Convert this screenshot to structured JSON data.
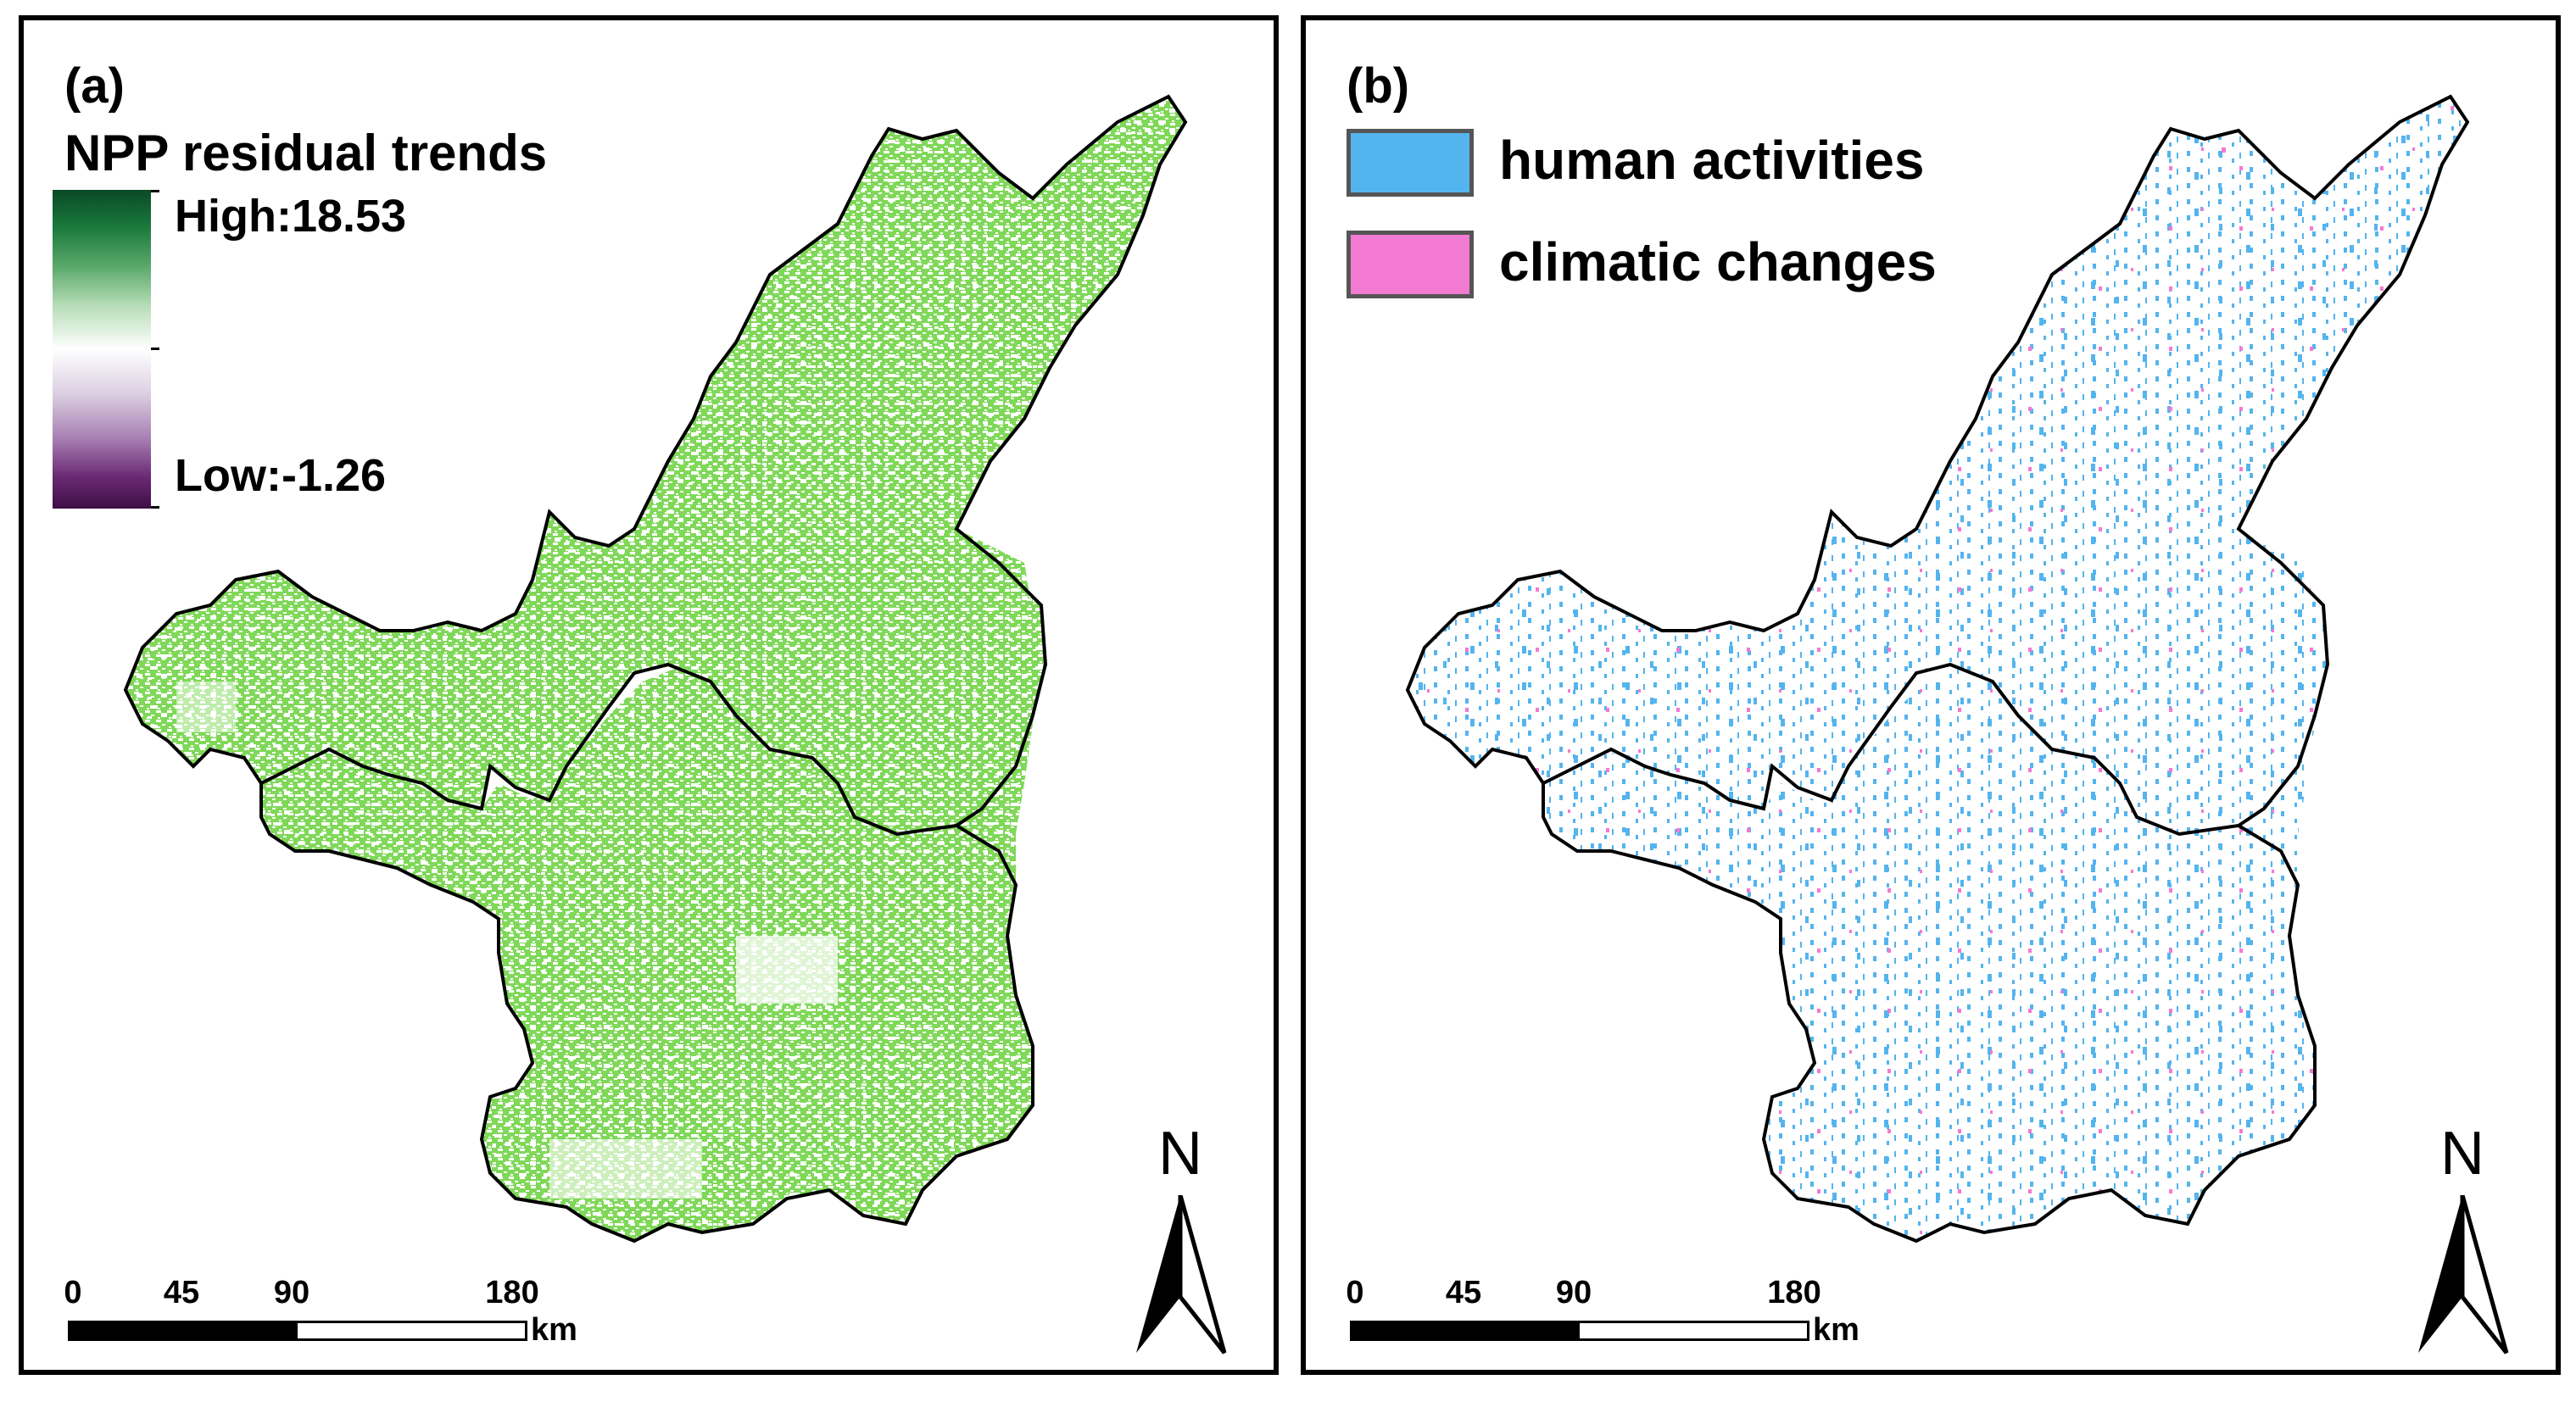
{
  "panels": {
    "a": {
      "label": "(a)",
      "legend_title": "NPP residual trends",
      "legend_high": "High:18.53",
      "legend_low": "Low:-1.26",
      "legend_colors": {
        "high": "#0a4a26",
        "mid": "#ffffff",
        "low": "#3e0d45"
      },
      "fill_color": "#7fd858",
      "scale": {
        "ticks": [
          "0",
          "45",
          "90",
          "180"
        ],
        "unit": "km"
      },
      "north": "N"
    },
    "b": {
      "label": "(b)",
      "legend_items": [
        {
          "label": "human activities",
          "color": "#54b4ee"
        },
        {
          "label": "climatic changes",
          "color": "#f27ad2"
        }
      ],
      "scale": {
        "ticks": [
          "0",
          "45",
          "90",
          "180"
        ],
        "unit": "km"
      },
      "north": "N"
    }
  }
}
